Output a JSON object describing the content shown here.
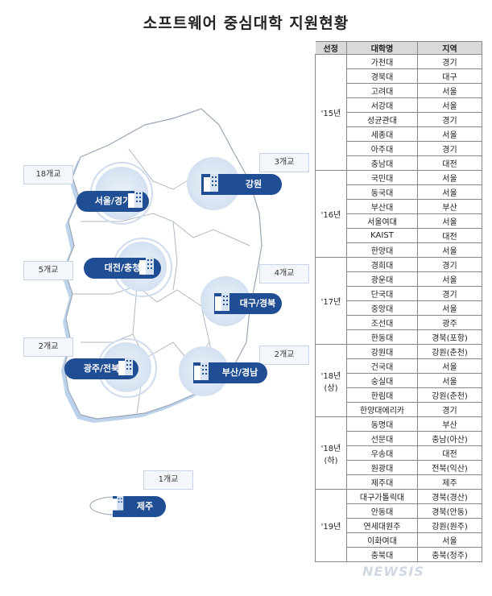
{
  "title": "소프트웨어 중심대학 지원현황",
  "map": {
    "regions": [
      {
        "name": "서울/경기",
        "count": "18개교"
      },
      {
        "name": "강원",
        "count": "3개교"
      },
      {
        "name": "대전/충청",
        "count": "5개교"
      },
      {
        "name": "대구/경북",
        "count": "4개교"
      },
      {
        "name": "광주/전북",
        "count": "2개교"
      },
      {
        "name": "부산/경남",
        "count": "2개교"
      },
      {
        "name": "제주",
        "count": "1개교"
      }
    ]
  },
  "table": {
    "headers": [
      "선정",
      "대학명",
      "지역"
    ],
    "groups": [
      {
        "label": "'15년",
        "rows": [
          [
            "가천대",
            "경기"
          ],
          [
            "경북대",
            "대구"
          ],
          [
            "고려대",
            "서울"
          ],
          [
            "서강대",
            "서울"
          ],
          [
            "성균관대",
            "경기"
          ],
          [
            "세종대",
            "서울"
          ],
          [
            "아주대",
            "경기"
          ],
          [
            "충남대",
            "대전"
          ]
        ]
      },
      {
        "label": "'16년",
        "rows": [
          [
            "국민대",
            "서울"
          ],
          [
            "동국대",
            "서울"
          ],
          [
            "부산대",
            "부산"
          ],
          [
            "서울여대",
            "서울"
          ],
          [
            "KAIST",
            "대전"
          ],
          [
            "한양대",
            "서울"
          ]
        ]
      },
      {
        "label": "'17년",
        "rows": [
          [
            "경희대",
            "경기"
          ],
          [
            "광운대",
            "서울"
          ],
          [
            "단국대",
            "경기"
          ],
          [
            "중앙대",
            "서울"
          ],
          [
            "조선대",
            "광주"
          ],
          [
            "한동대",
            "경북(포항)"
          ]
        ]
      },
      {
        "label": "'18년\n(상)",
        "rows": [
          [
            "강원대",
            "강원(춘천)"
          ],
          [
            "건국대",
            "서울"
          ],
          [
            "숭실대",
            "서울"
          ],
          [
            "한림대",
            "강원(춘천)"
          ],
          [
            "한양대에리카",
            "경기"
          ]
        ]
      },
      {
        "label": "'18년\n(하)",
        "rows": [
          [
            "동명대",
            "부산"
          ],
          [
            "선문대",
            "충남(아산)"
          ],
          [
            "우송대",
            "대전"
          ],
          [
            "원광대",
            "전북(익산)"
          ],
          [
            "제주대",
            "제주"
          ]
        ]
      },
      {
        "label": "'19년",
        "rows": [
          [
            "대구가톨릭대",
            "경북(경산)"
          ],
          [
            "안동대",
            "경북(안동)"
          ],
          [
            "연세대원주",
            "강원(원주)"
          ],
          [
            "이화여대",
            "서울"
          ],
          [
            "충북대",
            "충북(청주)"
          ]
        ]
      }
    ]
  },
  "watermark": "NEWSIS",
  "colors": {
    "pill": "#1f4e95",
    "halo": "#d8e4f2",
    "map_fill": "#ffffff",
    "map_outline": "#a9c6e6",
    "header_bg": "#d9d9d9"
  }
}
